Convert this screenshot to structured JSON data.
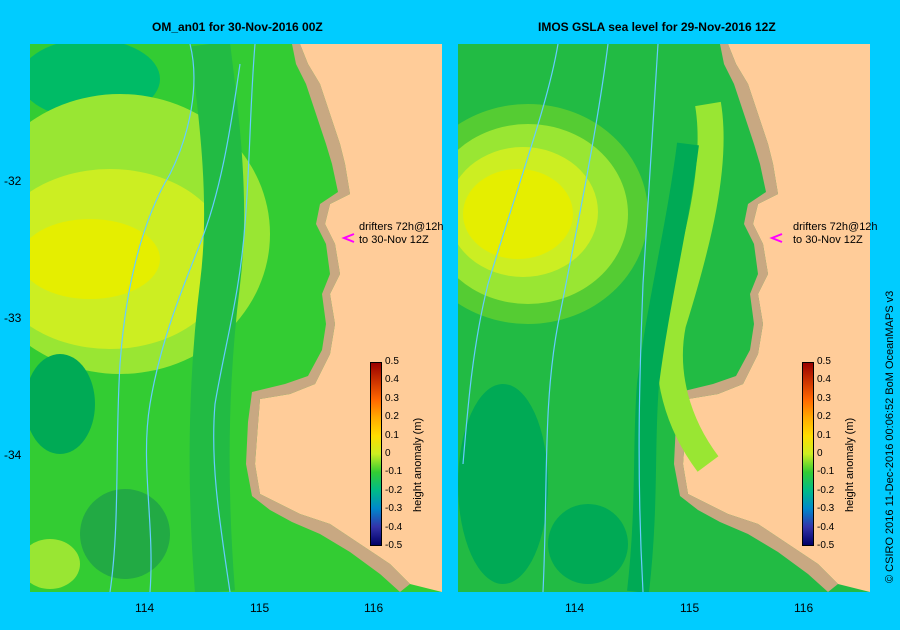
{
  "left_panel": {
    "title": "OM_an01  for 30-Nov-2016 00Z",
    "annotation_line1": "drifters 72h@12h",
    "annotation_line2": "to 30-Nov 12Z"
  },
  "right_panel": {
    "title": "IMOS GSLA sea level  for 29-Nov-2016 12Z",
    "annotation_line1": "drifters 72h@12h",
    "annotation_line2": "to 30-Nov 12Z"
  },
  "y_ticks": [
    "-32",
    "-33",
    "-34"
  ],
  "x_ticks": [
    "114",
    "115",
    "116"
  ],
  "colorbar": {
    "title": "height anomaly (m)",
    "ticks": [
      "0.5",
      "0.4",
      "0.3",
      "0.2",
      "0.1",
      "0",
      "-0.1",
      "-0.2",
      "-0.3",
      "-0.4",
      "-0.5"
    ]
  },
  "credit": "© CSIRO 2016   11-Dec-2016 00:06:52 BoM OceanMAPS v3",
  "colors": {
    "background": "#00ccff",
    "land": "#ffcc99",
    "shelf": "#c8a882",
    "drifter_marker": "#ff00ff"
  }
}
